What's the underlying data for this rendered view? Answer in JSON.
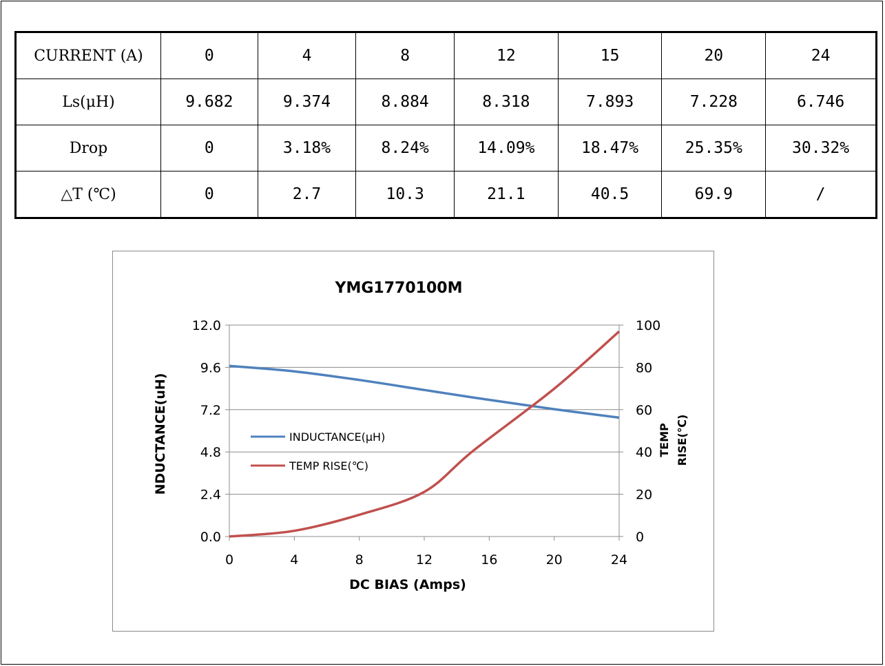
{
  "table": {
    "header_row": {
      "label": "CURRENT (A)",
      "values": [
        "0",
        "4",
        "8",
        "12",
        "15",
        "20",
        "24"
      ]
    },
    "rows": [
      {
        "label": "Ls(μH)",
        "values": [
          "9.682",
          "9.374",
          "8.884",
          "8.318",
          "7.893",
          "7.228",
          "6.746"
        ]
      },
      {
        "label": "Drop",
        "values": [
          "0",
          "3.18%",
          "8.24%",
          "14.09%",
          "18.47%",
          "25.35%",
          "30.32%"
        ]
      },
      {
        "label": "△T (℃)",
        "values": [
          "0",
          "2.7",
          "10.3",
          "21.1",
          "40.5",
          "69.9",
          "/"
        ]
      }
    ]
  },
  "chart_data": {
    "type": "line",
    "title": "YMG1770100M",
    "xlabel": "DC BIAS (Amps)",
    "ylabel": "NDUCTANCE(uH)",
    "y2label_lines": [
      "TEMP",
      "RISE(℃)"
    ],
    "xlim": [
      0,
      24
    ],
    "ylim": [
      0,
      12
    ],
    "y2lim": [
      0,
      100
    ],
    "x_ticks": [
      "0",
      "4",
      "8",
      "12",
      "16",
      "20",
      "24"
    ],
    "y_ticks": [
      "0.0",
      "2.4",
      "4.8",
      "7.2",
      "9.6",
      "12.0"
    ],
    "y2_ticks": [
      "0",
      "20",
      "40",
      "60",
      "80",
      "100"
    ],
    "grid": "horizontal",
    "legend_position": "left-middle",
    "series": [
      {
        "name": "INDUCTANCE(μH)",
        "axis": "left",
        "color": "#4f81bd",
        "x": [
          0,
          4,
          8,
          12,
          15,
          20,
          24
        ],
        "y": [
          9.682,
          9.374,
          8.884,
          8.318,
          7.893,
          7.228,
          6.746
        ]
      },
      {
        "name": "TEMP RISE(℃)",
        "axis": "right",
        "color": "#c0504d",
        "x": [
          0,
          4,
          8,
          12,
          15,
          20,
          24
        ],
        "y": [
          0,
          2.7,
          10.3,
          21.1,
          40.5,
          69.9,
          97
        ]
      }
    ]
  }
}
